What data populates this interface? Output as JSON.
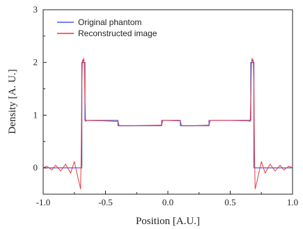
{
  "chart_data": {
    "type": "line",
    "xlabel": "Position [A.U.]",
    "ylabel": "Density [A. U.]",
    "xlim": [
      -1.0,
      1.0
    ],
    "ylim": [
      -0.5,
      3.0
    ],
    "xticks": [
      "-1.0",
      "-0.5",
      "0.0",
      "0.5",
      "1.0"
    ],
    "yticks": [
      "0",
      "1",
      "2",
      "3"
    ],
    "legend_position": "top-left",
    "series": [
      {
        "name": "Original phantom",
        "color": "#4a5bd8",
        "x": [
          -1.0,
          -0.69,
          -0.69,
          -0.665,
          -0.665,
          -0.4,
          -0.4,
          -0.05,
          -0.05,
          0.1,
          0.1,
          0.33,
          0.33,
          0.665,
          0.665,
          0.69,
          0.69,
          1.0
        ],
        "y": [
          0,
          0,
          2.0,
          2.0,
          0.9,
          0.9,
          0.8,
          0.8,
          0.9,
          0.9,
          0.8,
          0.8,
          0.9,
          0.9,
          2.0,
          2.0,
          0,
          0
        ]
      },
      {
        "name": "Reconstructed image",
        "color": "#e8393f",
        "x": [
          -1.0,
          -0.97,
          -0.93,
          -0.9,
          -0.86,
          -0.82,
          -0.78,
          -0.75,
          -0.72,
          -0.7,
          -0.695,
          -0.69,
          -0.685,
          -0.68,
          -0.675,
          -0.67,
          -0.665,
          -0.66,
          -0.65,
          -0.5,
          -0.4,
          -0.39,
          -0.3,
          -0.05,
          -0.04,
          0.0,
          0.1,
          0.11,
          0.2,
          0.33,
          0.34,
          0.5,
          0.65,
          0.66,
          0.665,
          0.67,
          0.675,
          0.68,
          0.685,
          0.69,
          0.695,
          0.7,
          0.72,
          0.75,
          0.78,
          0.82,
          0.86,
          0.9,
          0.93,
          0.97,
          1.0
        ],
        "y": [
          0.0,
          0.03,
          -0.04,
          0.05,
          -0.06,
          0.07,
          -0.1,
          0.12,
          -0.2,
          -0.4,
          0.3,
          1.6,
          2.05,
          2.02,
          2.08,
          1.95,
          1.3,
          0.88,
          0.9,
          0.89,
          0.88,
          0.8,
          0.8,
          0.81,
          0.9,
          0.9,
          0.89,
          0.8,
          0.8,
          0.81,
          0.9,
          0.9,
          0.89,
          0.88,
          1.3,
          1.95,
          2.08,
          2.02,
          2.05,
          1.6,
          0.3,
          -0.4,
          -0.2,
          0.12,
          -0.1,
          0.07,
          -0.06,
          0.05,
          -0.04,
          0.03,
          0.0
        ]
      }
    ]
  }
}
